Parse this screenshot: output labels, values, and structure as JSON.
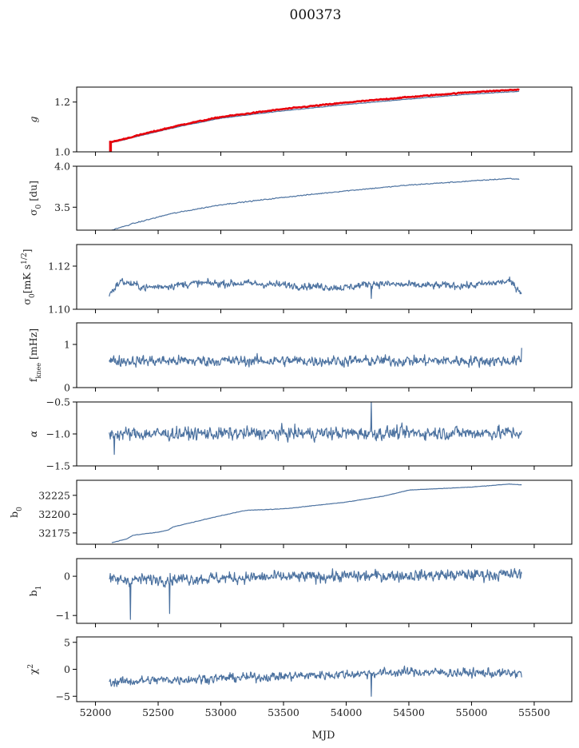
{
  "figure": {
    "title": "000373",
    "xlabel": "MJD",
    "xlim": [
      51850,
      55800
    ],
    "xticks": [
      52000,
      52500,
      53000,
      53500,
      54000,
      54500,
      55000,
      55500
    ],
    "colors": {
      "series": "#4c72a0",
      "overlay": "#e8000b"
    }
  },
  "chart_data": [
    {
      "type": "line",
      "ylabel": "g",
      "ylabel_html": "g",
      "ylim": [
        1.0,
        1.26
      ],
      "yticks": [
        1.0,
        1.2
      ],
      "ytick_labels": [
        "1.0",
        "1.2"
      ],
      "show_xticklabels": false,
      "series": [
        {
          "kind": "smooth",
          "color": "#4c72a0",
          "x": [
            52110,
            52200,
            52400,
            52700,
            53000,
            53500,
            54000,
            54500,
            55000,
            55380
          ],
          "y": [
            1.035,
            1.045,
            1.07,
            1.105,
            1.135,
            1.165,
            1.19,
            1.212,
            1.232,
            1.243
          ],
          "noise": 0.001
        },
        {
          "kind": "smooth",
          "color": "#e8000b",
          "width": 2.6,
          "x": [
            52110,
            52200,
            52400,
            52700,
            53000,
            53500,
            54000,
            54500,
            55000,
            55380
          ],
          "y": [
            1.038,
            1.048,
            1.074,
            1.11,
            1.14,
            1.172,
            1.198,
            1.22,
            1.24,
            1.25
          ],
          "noise": 0.002
        }
      ],
      "annotations": {
        "red_spike_x": 52120,
        "red_spike_range": [
          1.0,
          1.04
        ]
      }
    },
    {
      "type": "line",
      "ylabel": "σ0 [du]",
      "ylabel_html": "σ<tspan baseline-shift='sub' font-size='9'>0</tspan> [du]",
      "ylim": [
        3.22,
        4.0
      ],
      "yticks": [
        3.5,
        4.0
      ],
      "ytick_labels": [
        "3.5",
        "4.0"
      ],
      "show_xticklabels": false,
      "series": [
        {
          "kind": "smooth",
          "color": "#4c72a0",
          "x": [
            52130,
            52300,
            52600,
            53000,
            53500,
            54000,
            54500,
            55000,
            55300,
            55380
          ],
          "y": [
            3.22,
            3.3,
            3.42,
            3.53,
            3.62,
            3.7,
            3.77,
            3.82,
            3.85,
            3.84
          ],
          "noise": 0.006
        }
      ]
    },
    {
      "type": "line",
      "ylabel": "σ0[mK s1/2]",
      "ylabel_html": "σ<tspan baseline-shift='sub' font-size='9'>0</tspan>[mK s<tspan baseline-shift='super' font-size='9'>1/2</tspan>]",
      "ylim": [
        1.1,
        1.13
      ],
      "yticks": [
        1.1,
        1.12
      ],
      "ytick_labels": [
        "1.10",
        "1.12"
      ],
      "show_xticklabels": false,
      "series": [
        {
          "kind": "noisy",
          "color": "#4c72a0",
          "x": [
            52110,
            52200,
            52400,
            52800,
            53200,
            53600,
            54000,
            54200,
            54600,
            55000,
            55300,
            55400
          ],
          "y": [
            1.107,
            1.113,
            1.11,
            1.112,
            1.112,
            1.111,
            1.11,
            1.112,
            1.111,
            1.111,
            1.113,
            1.108
          ],
          "noise": 0.0015,
          "spikes": [
            [
              54200,
              1.105
            ]
          ]
        }
      ]
    },
    {
      "type": "line",
      "ylabel": "fknee [mHz]",
      "ylabel_html": "f<tspan baseline-shift='sub' font-size='8'>knee</tspan> [mHz]",
      "ylim": [
        0,
        1.5
      ],
      "yticks": [
        0,
        1
      ],
      "ytick_labels": [
        "0",
        "1"
      ],
      "show_xticklabels": false,
      "series": [
        {
          "kind": "noisy",
          "color": "#4c72a0",
          "x": [
            52110,
            55400
          ],
          "y": [
            0.62,
            0.62
          ],
          "noise": 0.11,
          "spikes": [
            [
              55400,
              0.92
            ]
          ]
        }
      ]
    },
    {
      "type": "line",
      "ylabel": "α",
      "ylabel_html": "α",
      "ylim": [
        -1.5,
        -0.5
      ],
      "yticks": [
        -1.5,
        -1.0,
        -0.5
      ],
      "ytick_labels": [
        "−1.5",
        "−1.0",
        "−0.5"
      ],
      "show_xticklabels": false,
      "series": [
        {
          "kind": "noisy",
          "color": "#4c72a0",
          "x": [
            52110,
            55400
          ],
          "y": [
            -1.0,
            -0.98
          ],
          "noise": 0.09,
          "spikes": [
            [
              54200,
              -0.5
            ],
            [
              52150,
              -1.32
            ]
          ]
        }
      ]
    },
    {
      "type": "line",
      "ylabel": "b0",
      "ylabel_html": "b<tspan baseline-shift='sub' font-size='9'>0</tspan>",
      "ylim": [
        32160,
        32245
      ],
      "yticks": [
        32175,
        32200,
        32225
      ],
      "ytick_labels": [
        "32175",
        "32200",
        "32225"
      ],
      "show_xticklabels": false,
      "series": [
        {
          "kind": "smooth",
          "color": "#4c72a0",
          "x": [
            52130,
            52250,
            52300,
            52500,
            52580,
            52620,
            53000,
            53200,
            53500,
            54000,
            54300,
            54500,
            55000,
            55300,
            55400
          ],
          "y": [
            32162,
            32167,
            32172,
            32176,
            32179,
            32183,
            32198,
            32205,
            32207,
            32216,
            32224,
            32232,
            32236,
            32240,
            32239
          ],
          "noise": 0.3
        }
      ]
    },
    {
      "type": "line",
      "ylabel": "b1",
      "ylabel_html": "b<tspan baseline-shift='sub' font-size='9'>1</tspan>",
      "ylim": [
        -1.2,
        0.45
      ],
      "yticks": [
        -1,
        0
      ],
      "ytick_labels": [
        "−1",
        "0"
      ],
      "show_xticklabels": false,
      "series": [
        {
          "kind": "noisy",
          "color": "#4c72a0",
          "x": [
            52110,
            52600,
            53500,
            54500,
            55400
          ],
          "y": [
            -0.1,
            -0.07,
            -0.02,
            0.02,
            0.05
          ],
          "noise": 0.13,
          "spikes": [
            [
              52280,
              -1.1
            ],
            [
              52590,
              -0.95
            ]
          ]
        }
      ]
    },
    {
      "type": "line",
      "ylabel": "χ2",
      "ylabel_html": "χ<tspan baseline-shift='super' font-size='9'>2</tspan>",
      "ylim": [
        -6,
        6
      ],
      "yticks": [
        -5,
        0,
        5
      ],
      "ytick_labels": [
        "−5",
        "0",
        "5"
      ],
      "show_xticklabels": true,
      "series": [
        {
          "kind": "noisy",
          "color": "#4c72a0",
          "x": [
            52110,
            52500,
            53500,
            54500,
            55400
          ],
          "y": [
            -2.4,
            -2.0,
            -1.3,
            -0.5,
            -0.8
          ],
          "noise": 0.75,
          "spikes": [
            [
              54200,
              -5.0
            ]
          ]
        }
      ]
    }
  ]
}
